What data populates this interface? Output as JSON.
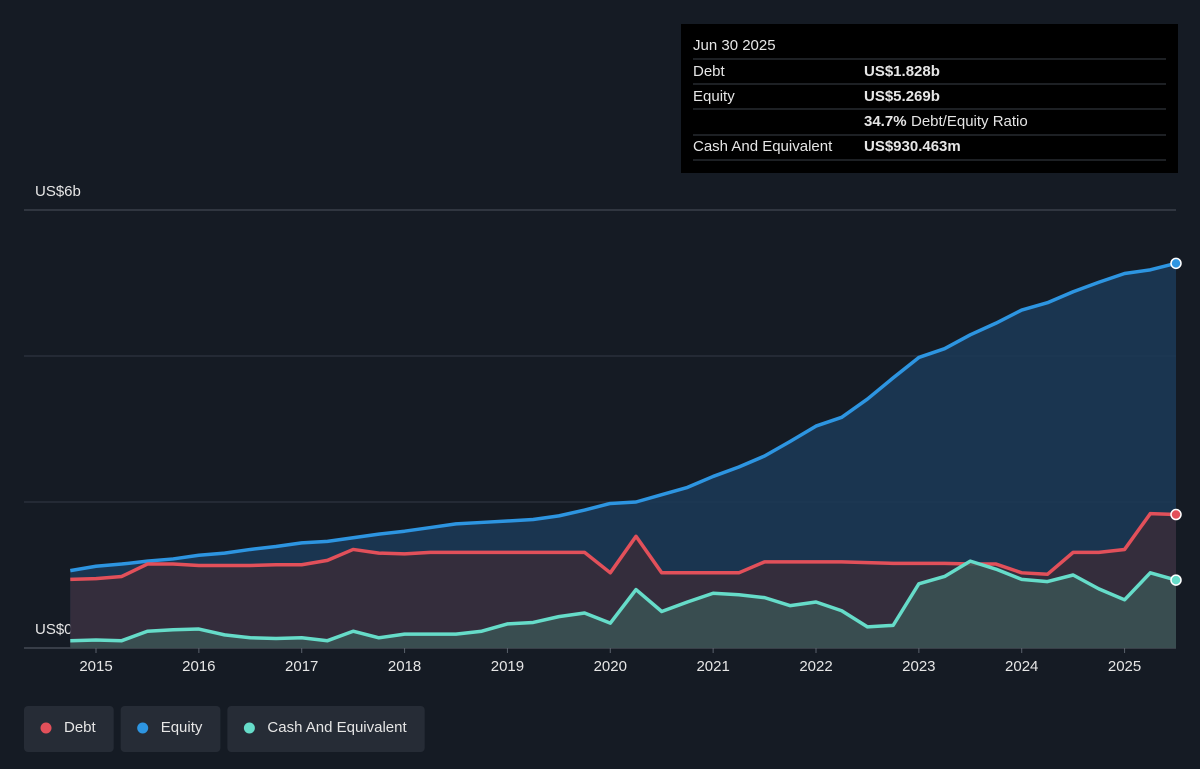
{
  "chart_data": {
    "type": "area",
    "x": [
      2014.75,
      2015,
      2015.25,
      2015.5,
      2015.75,
      2016,
      2016.25,
      2016.5,
      2016.75,
      2017,
      2017.25,
      2017.5,
      2017.75,
      2018,
      2018.25,
      2018.5,
      2018.75,
      2019,
      2019.25,
      2019.5,
      2019.75,
      2020,
      2020.25,
      2020.5,
      2020.75,
      2021,
      2021.25,
      2021.5,
      2021.75,
      2022,
      2022.25,
      2022.5,
      2022.75,
      2023,
      2023.25,
      2023.5,
      2023.75,
      2024,
      2024.25,
      2024.5,
      2024.75,
      2025,
      2025.25,
      2025.5
    ],
    "series": [
      {
        "name": "Equity",
        "color": "#2d95e1",
        "fill": "#1b3a58",
        "values": [
          1.06,
          1.12,
          1.15,
          1.19,
          1.22,
          1.27,
          1.3,
          1.35,
          1.39,
          1.44,
          1.46,
          1.51,
          1.56,
          1.6,
          1.65,
          1.7,
          1.72,
          1.74,
          1.76,
          1.81,
          1.89,
          1.98,
          2.0,
          2.1,
          2.2,
          2.35,
          2.48,
          2.63,
          2.83,
          3.04,
          3.16,
          3.41,
          3.7,
          3.98,
          4.1,
          4.29,
          4.45,
          4.63,
          4.73,
          4.88,
          5.01,
          5.13,
          5.18,
          5.269
        ]
      },
      {
        "name": "Debt",
        "color": "#e2505a",
        "fill": "#3a2b38",
        "values": [
          0.94,
          0.95,
          0.98,
          1.15,
          1.15,
          1.13,
          1.13,
          1.13,
          1.14,
          1.14,
          1.2,
          1.35,
          1.3,
          1.29,
          1.31,
          1.31,
          1.31,
          1.31,
          1.31,
          1.31,
          1.31,
          1.03,
          1.53,
          1.03,
          1.03,
          1.03,
          1.03,
          1.18,
          1.18,
          1.18,
          1.18,
          1.17,
          1.16,
          1.16,
          1.16,
          1.15,
          1.15,
          1.03,
          1.01,
          1.31,
          1.31,
          1.35,
          1.84,
          1.828
        ]
      },
      {
        "name": "Cash And Equivalent",
        "color": "#66dcc9",
        "fill": "#3b5454",
        "values": [
          0.1,
          0.11,
          0.1,
          0.23,
          0.25,
          0.26,
          0.18,
          0.14,
          0.13,
          0.14,
          0.1,
          0.23,
          0.14,
          0.19,
          0.19,
          0.19,
          0.23,
          0.33,
          0.35,
          0.43,
          0.48,
          0.34,
          0.8,
          0.5,
          0.63,
          0.75,
          0.73,
          0.69,
          0.58,
          0.63,
          0.51,
          0.29,
          0.31,
          0.88,
          0.98,
          1.19,
          1.08,
          0.94,
          0.91,
          1.0,
          0.81,
          0.66,
          1.03,
          0.93
        ]
      }
    ],
    "legend_order": [
      1,
      0,
      2
    ],
    "xlim": [
      2014.3,
      2025.5
    ],
    "xticks": [
      2015,
      2016,
      2017,
      2018,
      2019,
      2020,
      2021,
      2022,
      2023,
      2024,
      2025
    ],
    "ylim": [
      0,
      6
    ],
    "yticks": [
      {
        "value": 0,
        "label": "US$0"
      },
      {
        "value": 6,
        "label": "US$6b"
      }
    ],
    "gridlines": [
      2,
      4
    ],
    "tooltip": {
      "title": "Jun 30 2025",
      "rows": [
        {
          "label": "Debt",
          "value": "US$1.828b",
          "color": "#e2505a"
        },
        {
          "label": "Equity",
          "value": "US$5.269b",
          "color": "#2d95e1"
        }
      ],
      "ratio": "34.7%",
      "ratio_label": "Debt/Equity Ratio",
      "cash": {
        "label": "Cash And Equivalent",
        "value": "US$930.463m",
        "color": "#66dcc9"
      }
    }
  }
}
